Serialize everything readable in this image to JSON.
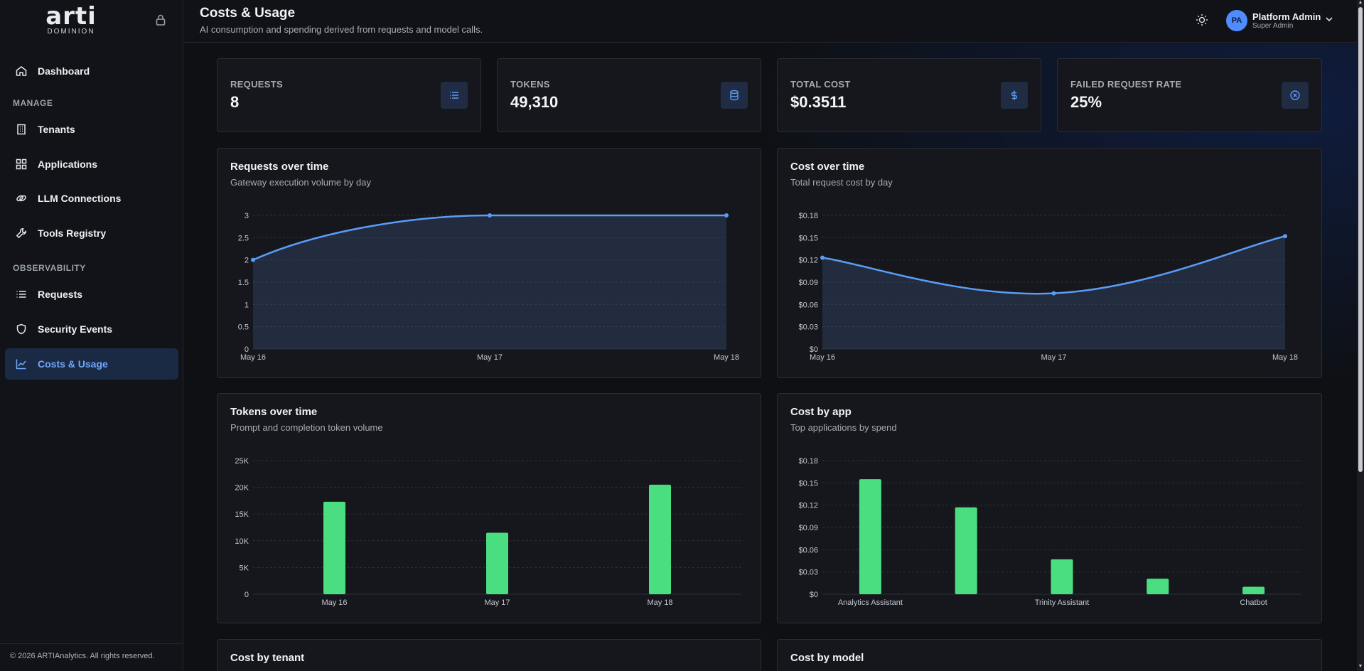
{
  "brand": {
    "word": "ARTI",
    "sub": "DOMINION"
  },
  "sidebar": {
    "items": [
      {
        "label": "Dashboard",
        "icon": "home-icon"
      },
      {
        "label": "Tenants",
        "icon": "building-icon"
      },
      {
        "label": "Applications",
        "icon": "grid-icon"
      },
      {
        "label": "LLM Connections",
        "icon": "link-icon"
      },
      {
        "label": "Tools Registry",
        "icon": "wrench-icon"
      },
      {
        "label": "Requests",
        "icon": "list-icon"
      },
      {
        "label": "Security Events",
        "icon": "shield-icon"
      },
      {
        "label": "Costs & Usage",
        "icon": "chart-line-icon",
        "active": true
      }
    ],
    "sections": {
      "manage": "MANAGE",
      "observability": "OBSERVABILITY"
    },
    "copyright": "© 2026 ARTIAnalytics. All rights reserved."
  },
  "header": {
    "title": "Costs & Usage",
    "subtitle": "AI consumption and spending derived from requests and model calls.",
    "user": {
      "initials": "PA",
      "name": "Platform Admin",
      "role": "Super Admin"
    }
  },
  "stats": [
    {
      "label": "REQUESTS",
      "value": "8",
      "icon": "list-icon"
    },
    {
      "label": "TOKENS",
      "value": "49,310",
      "icon": "database-icon"
    },
    {
      "label": "TOTAL COST",
      "value": "$0.3511",
      "icon": "dollar-icon"
    },
    {
      "label": "FAILED REQUEST RATE",
      "value": "25%",
      "icon": "x-circle-icon"
    }
  ],
  "colors": {
    "accent": "#5b9cf6",
    "bar": "#4ade80",
    "active_nav": "#6ea8ff"
  },
  "chart_data": [
    {
      "type": "area",
      "title": "Requests over time",
      "subtitle": "Gateway execution volume by day",
      "x": [
        "May 16",
        "May 17",
        "May 18"
      ],
      "values": [
        2,
        3,
        3
      ],
      "yticks": [
        "0",
        "0.5",
        "1",
        "1.5",
        "2",
        "2.5",
        "3"
      ],
      "ylim": [
        0,
        3
      ]
    },
    {
      "type": "area",
      "title": "Cost over time",
      "subtitle": "Total request cost by day",
      "x": [
        "May 16",
        "May 17",
        "May 18"
      ],
      "values": [
        0.123,
        0.075,
        0.152
      ],
      "yticks": [
        "$0",
        "$0.03",
        "$0.06",
        "$0.09",
        "$0.12",
        "$0.15",
        "$0.18"
      ],
      "ylim": [
        0,
        0.18
      ]
    },
    {
      "type": "bar",
      "title": "Tokens over time",
      "subtitle": "Prompt and completion token volume",
      "categories": [
        "May 16",
        "May 17",
        "May 18"
      ],
      "values": [
        17300,
        11500,
        20500
      ],
      "yticks": [
        "0",
        "5K",
        "10K",
        "15K",
        "20K",
        "25K"
      ],
      "ylim": [
        0,
        25000
      ]
    },
    {
      "type": "bar",
      "title": "Cost by app",
      "subtitle": "Top applications by spend",
      "categories": [
        "Analytics Assistant",
        "",
        "Trinity Assistant",
        "",
        "Chatbot"
      ],
      "values": [
        0.155,
        0.117,
        0.047,
        0.021,
        0.01
      ],
      "yticks": [
        "$0",
        "$0.03",
        "$0.06",
        "$0.09",
        "$0.12",
        "$0.15",
        "$0.18"
      ],
      "ylim": [
        0,
        0.18
      ]
    }
  ],
  "lower_panels": [
    {
      "title": "Cost by tenant"
    },
    {
      "title": "Cost by model"
    }
  ]
}
